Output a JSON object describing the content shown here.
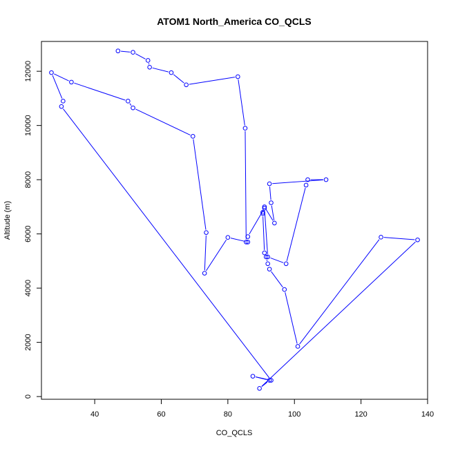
{
  "chart_data": {
    "type": "line",
    "title": "ATOM1 North_America CO_QCLS",
    "xlabel": "CO_QCLS",
    "ylabel": "Altitude (m)",
    "xlim": [
      24,
      140
    ],
    "ylim": [
      -100,
      13100
    ],
    "x_ticks": [
      40,
      60,
      80,
      100,
      120,
      140
    ],
    "y_ticks": [
      0,
      2000,
      4000,
      6000,
      8000,
      10000,
      12000
    ],
    "x_tick_labels": [
      "40",
      "60",
      "80",
      "100",
      "120",
      "140"
    ],
    "y_tick_labels": [
      "0",
      "2000",
      "4000",
      "6000",
      "8000",
      "10000",
      "12000"
    ],
    "grid": false,
    "legend": "none",
    "series_color": "#0000ff",
    "marker": "open-circle",
    "series": [
      {
        "x": [
          47,
          51.5,
          56,
          56.5,
          63,
          67.5,
          83,
          85.2,
          85.5,
          86,
          91,
          92,
          97.5,
          103.5,
          104,
          109.5,
          92.5,
          93,
          94,
          91,
          90.5,
          90.5,
          91,
          91.5,
          92,
          92.5,
          97,
          101,
          126,
          137,
          89.5,
          92.5,
          87.5,
          93,
          30,
          30.5,
          27,
          33,
          50,
          51.5,
          69.5,
          73.5,
          73,
          80,
          86
        ],
        "y": [
          12750,
          12700,
          12400,
          12150,
          11950,
          11500,
          11800,
          9900,
          5700,
          5900,
          6950,
          5150,
          4900,
          7800,
          8000,
          8000,
          7850,
          7150,
          6400,
          7000,
          6800,
          6750,
          5300,
          5150,
          4900,
          4700,
          3950,
          1850,
          5880,
          5780,
          300,
          600,
          750,
          600,
          10700,
          10900,
          11950,
          11600,
          10900,
          10650,
          9600,
          6050,
          4550,
          5870,
          5700
        ]
      }
    ]
  }
}
